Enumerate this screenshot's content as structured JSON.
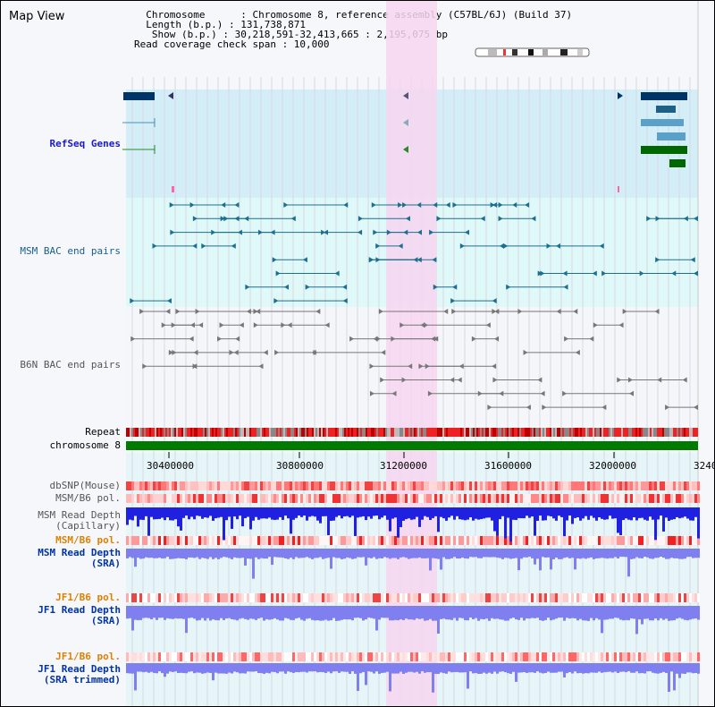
{
  "header": {
    "title": "Map View",
    "info_lines": [
      "  Chromosome      : Chromosome 8, reference assembly (C57BL/6J) (Build 37)",
      "  Length (b.p.) : 131,738,871",
      "   Show (b.p.) : 30,218,591-32,413,665 : 2,195,075 bp",
      "Read coverage check span : 10,000"
    ]
  },
  "tracks": {
    "refseq_genes": "RefSeq Genes",
    "msm_bac": "MSM BAC end pairs",
    "b6n_bac": "B6N BAC end pairs",
    "repeat": "Repeat",
    "chromosome": "chromosome 8",
    "dbsnp": "dbSNP(Mouse)",
    "msm_b6_pol_1": "MSM/B6 pol.",
    "msm_read_depth_cap": "MSM Read Depth",
    "msm_read_depth_cap_sub": "(Capillary)",
    "msm_b6_pol_2": "MSM/B6 pol.",
    "msm_read_depth_sra": "MSM Read Depth",
    "msm_read_depth_sra_sub": "(SRA)",
    "jf1_b6_pol_1": "JF1/B6 pol.",
    "jf1_read_depth_sra": "JF1 Read Depth",
    "jf1_read_depth_sra_sub": "(SRA)",
    "jf1_b6_pol_2": "JF1/B6 pol.",
    "jf1_read_depth_trim": "JF1 Read Depth",
    "jf1_read_depth_trim_sub": "(SRA trimmed)"
  },
  "axis": {
    "ticks": [
      "30400000",
      "30800000",
      "31200000",
      "31600000",
      "32000000",
      "3240"
    ]
  },
  "colors": {
    "highlight": "#f7d6f0",
    "refseq_bg": "#d4eef8",
    "msm_bg": "#dff8f8",
    "chromosome": "#007a00",
    "depth_blue": "#2a2ae8",
    "depth_light": "#7f7ff0"
  }
}
